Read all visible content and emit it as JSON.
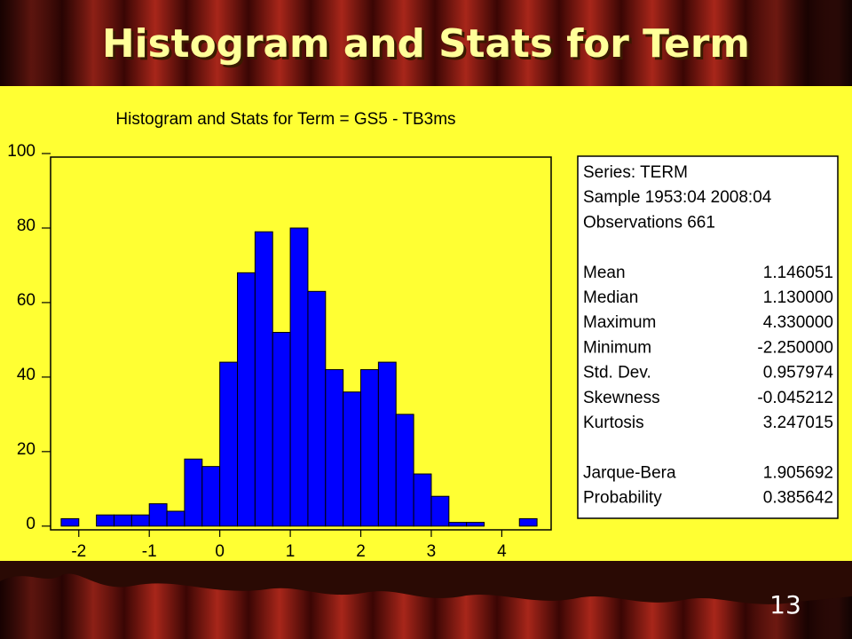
{
  "slide": {
    "title": "Histogram and Stats for Term",
    "page_number": "13"
  },
  "chart_data": {
    "type": "histogram",
    "title": "Histogram and Stats for Term = GS5 - TB3ms",
    "bins": [
      -2.25,
      -2.0,
      -1.75,
      -1.5,
      -1.25,
      -1.0,
      -0.75,
      -0.5,
      -0.25,
      0,
      0.25,
      0.5,
      0.75,
      1.0,
      1.25,
      1.5,
      1.75,
      2.0,
      2.25,
      2.5,
      2.75,
      3.0,
      3.25,
      3.5,
      3.75,
      4.0,
      4.25,
      4.5
    ],
    "values": [
      2,
      0,
      3,
      3,
      3,
      6,
      4,
      18,
      16,
      44,
      68,
      79,
      52,
      80,
      63,
      42,
      36,
      42,
      44,
      30,
      14,
      8,
      1,
      1,
      0,
      0,
      2
    ],
    "color": "#0000ff",
    "xlim": [
      -2.4,
      4.7
    ],
    "xticks": [
      -2,
      -1,
      0,
      1,
      2,
      3,
      4
    ],
    "ylim": [
      -1,
      100
    ],
    "yticks": [
      0,
      20,
      40,
      60,
      80,
      100
    ]
  },
  "stats_box": {
    "header": [
      "Series: TERM",
      "Sample 1953:04 2008:04",
      "Observations 661"
    ],
    "rows": [
      [
        "Mean",
        "1.146051"
      ],
      [
        "Median",
        "1.130000"
      ],
      [
        "Maximum",
        "4.330000"
      ],
      [
        "Minimum",
        "-2.250000"
      ],
      [
        "Std. Dev.",
        "0.957974"
      ],
      [
        "Skewness",
        "-0.045212"
      ],
      [
        "Kurtosis",
        "3.247015"
      ]
    ],
    "tests": [
      [
        "Jarque-Bera",
        "1.905692"
      ],
      [
        "Probability",
        "0.385642"
      ]
    ]
  }
}
